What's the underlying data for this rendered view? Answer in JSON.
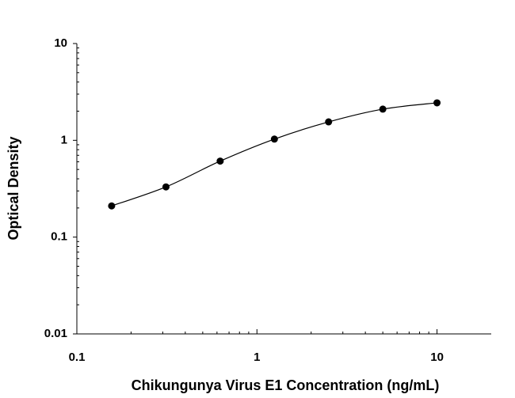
{
  "chart_data": {
    "type": "scatter",
    "x_label": "Chikungunya Virus E1 Concentration (ng/mL)",
    "y_label": "Optical Density",
    "x": [
      0.156,
      0.3125,
      0.625,
      1.25,
      2.5,
      5,
      10
    ],
    "series": [
      {
        "color": "#000000",
        "values": [
          0.21,
          0.33,
          0.61,
          1.03,
          1.55,
          2.1,
          2.44
        ]
      }
    ],
    "fit_line": true,
    "xlim": [
      0.1,
      20
    ],
    "ylim": [
      0.01,
      10
    ],
    "xticks": [
      0.1,
      1,
      10
    ],
    "yticks": [
      0.01,
      0.1,
      1,
      10
    ],
    "xminorticks": [
      0.2,
      0.3,
      0.4,
      0.5,
      0.6,
      0.7,
      0.8,
      0.9,
      2,
      3,
      4,
      5,
      6,
      7,
      8,
      9
    ],
    "yminorticks": [
      0.02,
      0.03,
      0.04,
      0.05,
      0.06,
      0.07,
      0.08,
      0.09,
      0.2,
      0.3,
      0.4,
      0.5,
      0.6,
      0.7,
      0.8,
      0.9,
      2,
      3,
      4,
      5,
      6,
      7,
      8,
      9
    ],
    "x_log": true,
    "y_log": true,
    "grid": false
  }
}
